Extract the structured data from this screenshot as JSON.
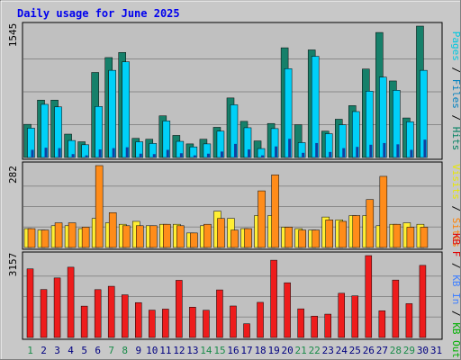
{
  "chart_data": {
    "type": "bar",
    "title": "Daily usage for June 2025",
    "categories": [
      "1",
      "2",
      "3",
      "4",
      "5",
      "6",
      "7",
      "8",
      "9",
      "10",
      "11",
      "12",
      "13",
      "14",
      "15",
      "16",
      "17",
      "18",
      "19",
      "20",
      "21",
      "22",
      "23",
      "24",
      "25",
      "26",
      "27",
      "28",
      "29",
      "30",
      "31"
    ],
    "weekend_days": [
      "1",
      "7",
      "8",
      "14",
      "15",
      "21",
      "22",
      "28",
      "29"
    ],
    "panels": [
      {
        "id": "top",
        "max_label": "1545",
        "ylim": [
          0,
          1545
        ],
        "right_label": [
          {
            "text": "Pages",
            "color": "#00c8e0"
          },
          {
            "text": " / ",
            "color": "#000000"
          },
          {
            "text": "Files",
            "color": "#0080c0"
          },
          {
            "text": " / ",
            "color": "#000000"
          },
          {
            "text": "Hits",
            "color": "#008060"
          }
        ],
        "series": [
          {
            "name": "Hits",
            "color": "#16806a",
            "values": [
              390,
              675,
              675,
              275,
              185,
              1000,
              1175,
              1235,
              225,
              215,
              490,
              260,
              160,
              215,
              355,
              700,
              425,
              195,
              400,
              1290,
              385,
              1265,
              310,
              450,
              610,
              1040,
              1470,
              900,
              465,
              1545,
              0
            ]
          },
          {
            "name": "Files",
            "color": "#00d0f8",
            "values": [
              345,
              625,
              595,
              200,
              150,
              600,
              1025,
              1125,
              185,
              165,
              430,
              190,
              125,
              160,
              310,
              620,
              350,
              105,
              340,
              1045,
              175,
              1190,
              280,
              385,
              540,
              780,
              945,
              790,
              420,
              1025,
              0
            ]
          },
          {
            "name": "Pages",
            "color": "#1040a0",
            "values": [
              90,
              115,
              110,
              40,
              25,
              95,
              110,
              120,
              45,
              40,
              90,
              50,
              25,
              45,
              70,
              160,
              95,
              25,
              130,
              220,
              55,
              170,
              65,
              110,
              125,
              150,
              170,
              155,
              90,
              210,
              0
            ]
          }
        ]
      },
      {
        "id": "mid",
        "max_label": "282",
        "ylim": [
          0,
          282
        ],
        "right_label": [
          {
            "text": "Visits",
            "color": "#e8e800"
          },
          {
            "text": " / ",
            "color": "#000000"
          },
          {
            "text": "Sites",
            "color": "#ff8000"
          }
        ],
        "series": [
          {
            "name": "Visits",
            "color": "#ffee33",
            "values": [
              65,
              60,
              75,
              75,
              65,
              100,
              85,
              80,
              90,
              75,
              80,
              80,
              50,
              75,
              125,
              100,
              65,
              110,
              110,
              70,
              65,
              60,
              105,
              95,
              110,
              110,
              75,
              80,
              85,
              80,
              0
            ]
          },
          {
            "name": "Sites",
            "color": "#ff8c1a",
            "values": [
              65,
              60,
              85,
              85,
              70,
              282,
              120,
              75,
              75,
              75,
              80,
              75,
              50,
              80,
              100,
              60,
              65,
              195,
              250,
              70,
              60,
              60,
              95,
              90,
              110,
              165,
              245,
              80,
              70,
              70,
              0
            ]
          }
        ]
      },
      {
        "id": "bot",
        "max_label": "3157",
        "ylim": [
          0,
          3157
        ],
        "right_label": [
          {
            "text": "KB F",
            "color": "#e00000"
          },
          {
            "text": " / ",
            "color": "#000000"
          },
          {
            "text": "KB In",
            "color": "#4080ff"
          },
          {
            "text": " / ",
            "color": "#000000"
          },
          {
            "text": "KB Out",
            "color": "#00b000"
          }
        ],
        "series": [
          {
            "name": "KB F",
            "color": "#ee1c1c",
            "values": [
              2645,
              1850,
              2295,
              2710,
              1210,
              1845,
              1975,
              1645,
              1345,
              1055,
              1095,
              2205,
              1170,
              1050,
              1835,
              1215,
              530,
              1355,
              2980,
              2110,
              1105,
              825,
              900,
              1705,
              1605,
              3157,
              1030,
              2215,
              1305,
              2780,
              0
            ]
          }
        ]
      }
    ]
  }
}
